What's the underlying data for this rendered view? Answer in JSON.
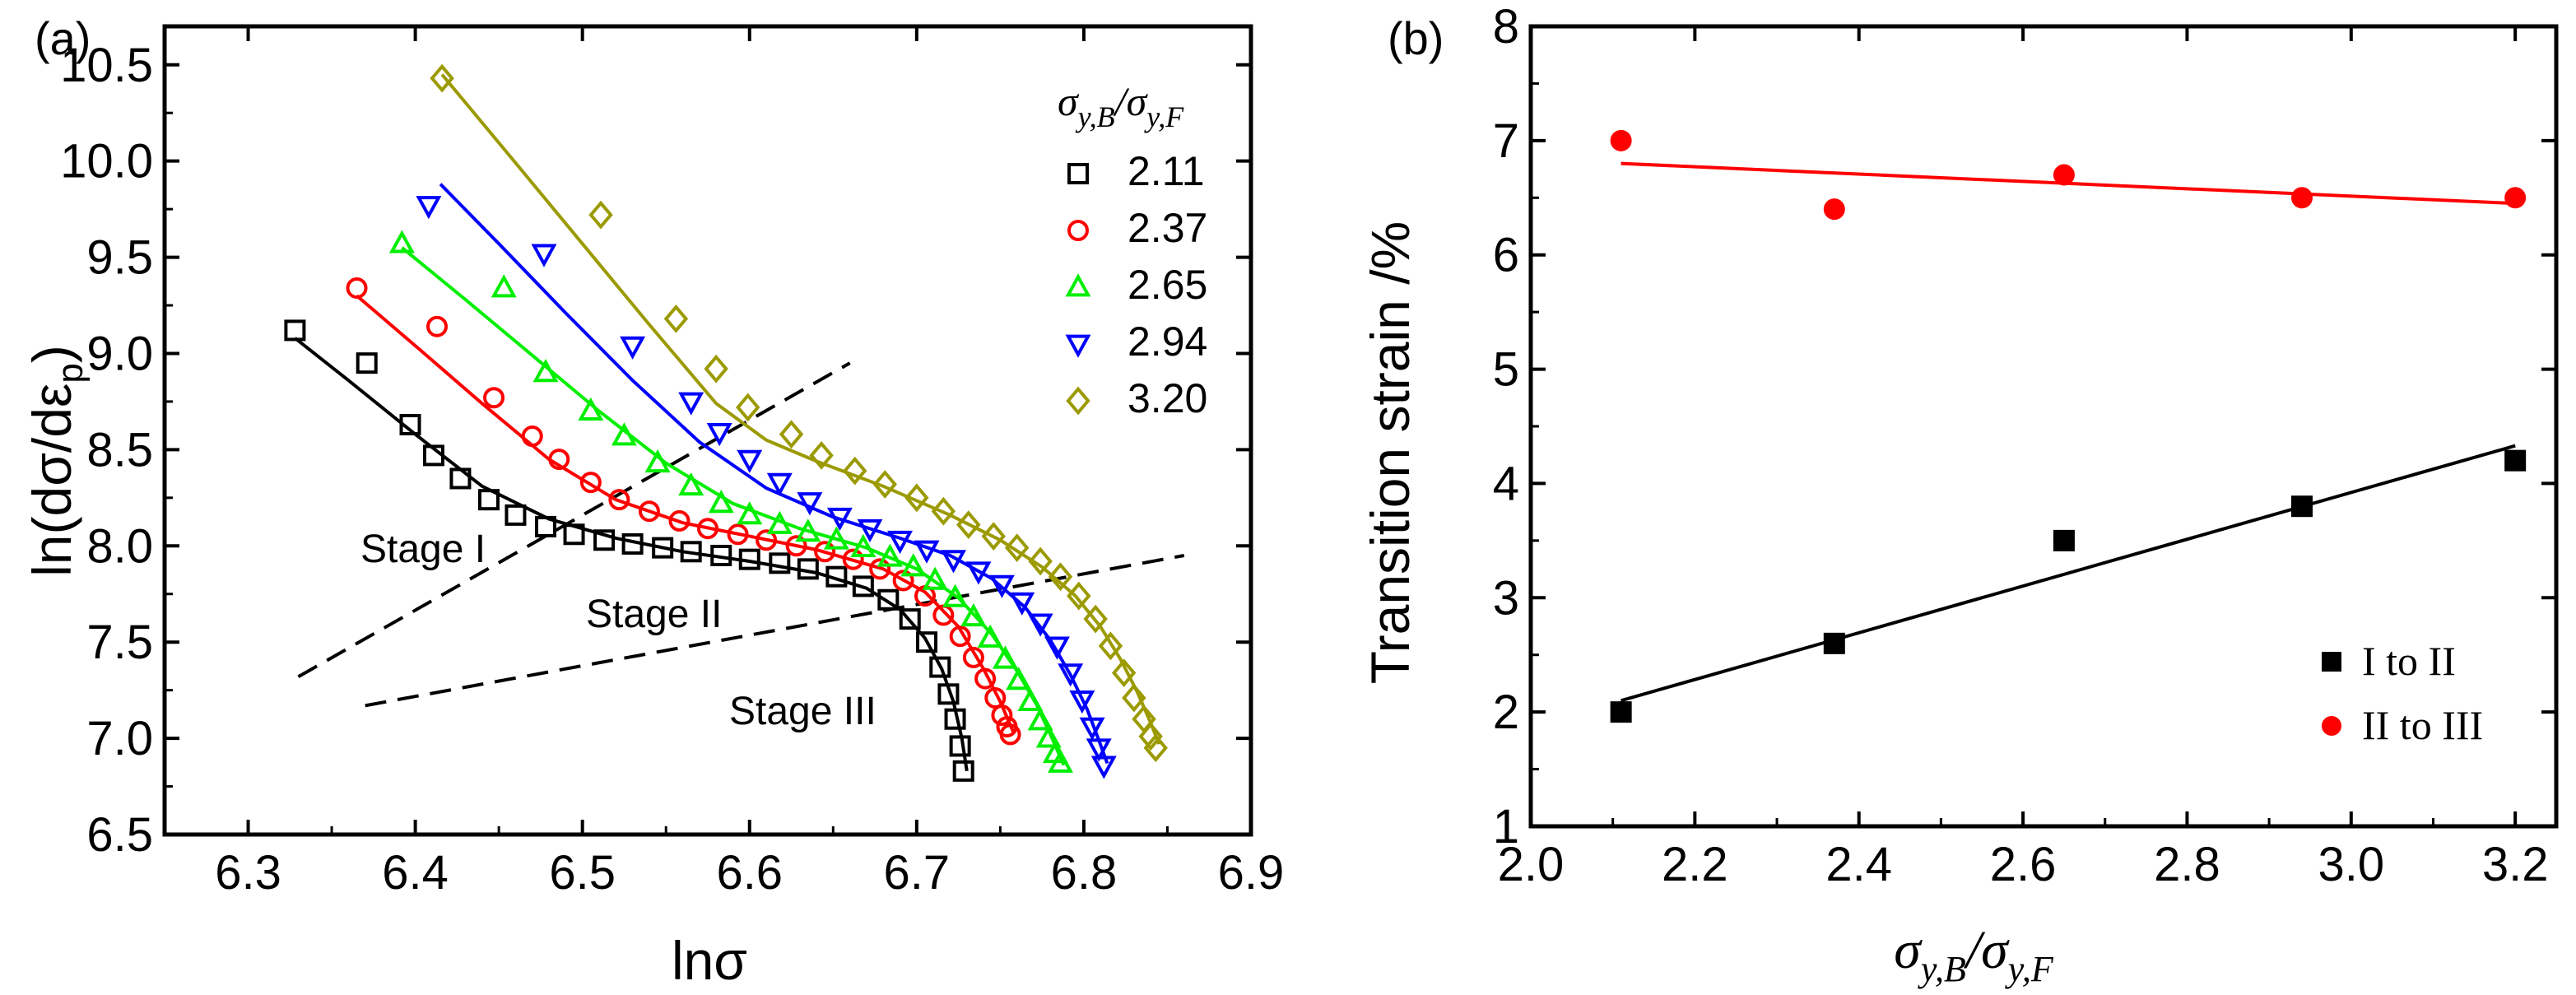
{
  "chart_data": [
    {
      "panel_label": "(a)",
      "type": "scatter",
      "xlabel": "lnσ",
      "ylabel": "ln(dσ/dε",
      "ylabel_sub": "p",
      "ylabel_close": ")",
      "xlim": [
        6.25,
        6.9
      ],
      "ylim": [
        6.5,
        10.7
      ],
      "xticks": [
        6.3,
        6.4,
        6.5,
        6.6,
        6.7,
        6.8,
        6.9
      ],
      "xtick_labels": [
        "6.3",
        "6.4",
        "6.5",
        "6.6",
        "6.7",
        "6.8",
        "6.9"
      ],
      "yticks": [
        6.5,
        7.0,
        7.5,
        8.0,
        8.5,
        9.0,
        9.5,
        10.0,
        10.5
      ],
      "ytick_labels": [
        "6.5",
        "7.0",
        "7.5",
        "8.0",
        "8.5",
        "9.0",
        "9.5",
        "10.0",
        "10.5"
      ],
      "legend_title": {
        "main": "σ",
        "sub1": "y,B",
        "slash": "/",
        "sub2": "y,F"
      },
      "annotations": [
        "Stage I",
        "Stage II",
        "Stage III"
      ],
      "series": [
        {
          "name": "2.11",
          "color": "#000000",
          "marker": "square",
          "x": [
            6.328,
            6.371,
            6.397,
            6.411,
            6.427,
            6.444,
            6.46,
            6.478,
            6.495,
            6.513,
            6.53,
            6.548,
            6.565,
            6.583,
            6.6,
            6.618,
            6.635,
            6.652,
            6.668,
            6.683,
            6.696,
            6.706,
            6.714,
            6.719,
            6.723,
            6.726,
            6.728
          ],
          "y": [
            9.12,
            8.95,
            8.63,
            8.47,
            8.35,
            8.24,
            8.16,
            8.1,
            8.06,
            8.03,
            8.01,
            7.99,
            7.97,
            7.95,
            7.93,
            7.91,
            7.88,
            7.84,
            7.79,
            7.72,
            7.62,
            7.5,
            7.37,
            7.23,
            7.1,
            6.96,
            6.83
          ],
          "fit_x": [
            6.328,
            6.36,
            6.4,
            6.44,
            6.48,
            6.52,
            6.56,
            6.6,
            6.64,
            6.67,
            6.69,
            6.705,
            6.715,
            6.722,
            6.727,
            6.73
          ],
          "fit_y": [
            9.08,
            8.86,
            8.58,
            8.31,
            8.14,
            8.04,
            7.97,
            7.92,
            7.86,
            7.78,
            7.67,
            7.52,
            7.36,
            7.19,
            7.0,
            6.83
          ]
        },
        {
          "name": "2.37",
          "color": "#ff0000",
          "marker": "circle",
          "x": [
            6.365,
            6.413,
            6.447,
            6.47,
            6.486,
            6.505,
            6.522,
            6.54,
            6.558,
            6.575,
            6.593,
            6.61,
            6.628,
            6.645,
            6.662,
            6.678,
            6.692,
            6.705,
            6.716,
            6.726,
            6.734,
            6.741,
            6.747,
            6.751,
            6.754,
            6.756
          ],
          "y": [
            9.34,
            9.14,
            8.77,
            8.57,
            8.45,
            8.33,
            8.24,
            8.18,
            8.13,
            8.09,
            8.06,
            8.03,
            8.0,
            7.97,
            7.93,
            7.88,
            7.82,
            7.74,
            7.64,
            7.53,
            7.42,
            7.31,
            7.21,
            7.12,
            7.06,
            7.02
          ],
          "fit_x": [
            6.365,
            6.4,
            6.44,
            6.48,
            6.52,
            6.56,
            6.6,
            6.64,
            6.68,
            6.705,
            6.725,
            6.74,
            6.75,
            6.755,
            6.758
          ],
          "fit_y": [
            9.3,
            9.04,
            8.74,
            8.45,
            8.24,
            8.12,
            8.05,
            7.98,
            7.88,
            7.76,
            7.58,
            7.36,
            7.19,
            7.09,
            7.03
          ]
        },
        {
          "name": "2.65",
          "color": "#00ee00",
          "marker": "triangle-up",
          "x": [
            6.392,
            6.453,
            6.478,
            6.505,
            6.525,
            6.545,
            6.565,
            6.583,
            6.6,
            6.618,
            6.635,
            6.652,
            6.668,
            6.684,
            6.698,
            6.711,
            6.723,
            6.734,
            6.744,
            6.753,
            6.761,
            6.768,
            6.774,
            6.779,
            6.783,
            6.786
          ],
          "y": [
            9.57,
            9.34,
            8.9,
            8.7,
            8.57,
            8.43,
            8.31,
            8.22,
            8.16,
            8.11,
            8.07,
            8.03,
            7.99,
            7.94,
            7.89,
            7.82,
            7.73,
            7.63,
            7.52,
            7.41,
            7.3,
            7.19,
            7.09,
            7.0,
            6.92,
            6.87
          ],
          "fit_x": [
            6.392,
            6.43,
            6.47,
            6.51,
            6.55,
            6.59,
            6.63,
            6.67,
            6.7,
            6.725,
            6.745,
            6.76,
            6.772,
            6.78,
            6.785,
            6.788
          ],
          "fit_y": [
            9.55,
            9.28,
            8.99,
            8.7,
            8.43,
            8.22,
            8.09,
            7.99,
            7.88,
            7.73,
            7.54,
            7.35,
            7.17,
            7.02,
            6.92,
            6.86
          ]
        },
        {
          "name": "2.94",
          "color": "#0000ff",
          "marker": "triangle-down",
          "x": [
            6.408,
            6.477,
            6.53,
            6.565,
            6.582,
            6.6,
            6.618,
            6.636,
            6.654,
            6.672,
            6.69,
            6.706,
            6.722,
            6.737,
            6.751,
            6.763,
            6.774,
            6.784,
            6.792,
            6.799,
            6.805,
            6.809,
            6.812
          ],
          "y": [
            9.77,
            9.52,
            9.04,
            8.75,
            8.59,
            8.45,
            8.33,
            8.23,
            8.15,
            8.09,
            8.03,
            7.98,
            7.93,
            7.87,
            7.8,
            7.71,
            7.6,
            7.48,
            7.34,
            7.2,
            7.06,
            6.95,
            6.86
          ],
          "fit_x": [
            6.415,
            6.45,
            6.49,
            6.53,
            6.57,
            6.61,
            6.65,
            6.69,
            6.72,
            6.745,
            6.765,
            6.78,
            6.792,
            6.802,
            6.809,
            6.814
          ],
          "fit_y": [
            9.88,
            9.57,
            9.21,
            8.86,
            8.54,
            8.3,
            8.15,
            8.04,
            7.95,
            7.83,
            7.68,
            7.51,
            7.33,
            7.15,
            6.99,
            6.87
          ]
        },
        {
          "name": "3.20",
          "color": "#9b9a00",
          "marker": "diamond",
          "x": [
            6.416,
            6.511,
            6.556,
            6.58,
            6.599,
            6.625,
            6.643,
            6.663,
            6.681,
            6.7,
            6.716,
            6.731,
            6.746,
            6.76,
            6.774,
            6.786,
            6.797,
            6.807,
            6.816,
            6.824,
            6.83,
            6.836,
            6.84,
            6.843
          ],
          "y": [
            10.43,
            9.72,
            9.18,
            8.92,
            8.72,
            8.58,
            8.47,
            8.39,
            8.32,
            8.25,
            8.18,
            8.11,
            8.05,
            7.99,
            7.92,
            7.84,
            7.74,
            7.62,
            7.48,
            7.34,
            7.21,
            7.1,
            7.01,
            6.95
          ],
          "fit_x": [
            6.416,
            6.46,
            6.5,
            6.54,
            6.58,
            6.61,
            6.64,
            6.68,
            6.72,
            6.75,
            6.775,
            6.795,
            6.81,
            6.822,
            6.832,
            6.84,
            6.845
          ],
          "fit_y": [
            10.45,
            9.99,
            9.57,
            9.15,
            8.74,
            8.55,
            8.44,
            8.31,
            8.16,
            8.03,
            7.89,
            7.74,
            7.58,
            7.41,
            7.24,
            7.08,
            6.97
          ]
        }
      ],
      "boundary_lines": [
        {
          "x": [
            6.33,
            6.66
          ],
          "y": [
            7.32,
            8.95
          ]
        },
        {
          "x": [
            6.37,
            6.86
          ],
          "y": [
            7.17,
            7.95
          ]
        }
      ]
    },
    {
      "panel_label": "(b)",
      "type": "scatter",
      "ylabel": "Transition strain /%",
      "xlabel": {
        "main": "σ",
        "sub1": "y,B",
        "slash": "/",
        "sub2": "y,F"
      },
      "xlim": [
        2.0,
        3.25
      ],
      "ylim": [
        1,
        8
      ],
      "xticks": [
        2.0,
        2.2,
        2.4,
        2.6,
        2.8,
        3.0,
        3.2
      ],
      "xtick_labels": [
        "2.0",
        "2.2",
        "2.4",
        "2.6",
        "2.8",
        "3.0",
        "3.2"
      ],
      "yticks": [
        1,
        2,
        3,
        4,
        5,
        6,
        7,
        8
      ],
      "ytick_labels": [
        "1",
        "2",
        "3",
        "4",
        "5",
        "6",
        "7",
        "8"
      ],
      "series": [
        {
          "name": "I to II",
          "color": "#000000",
          "marker": "square",
          "x": [
            2.11,
            2.37,
            2.65,
            2.94,
            3.2
          ],
          "y": [
            2.0,
            2.6,
            3.5,
            3.8,
            4.2
          ],
          "fit_x": [
            2.11,
            3.2
          ],
          "fit_y": [
            2.1,
            4.33
          ]
        },
        {
          "name": "II to III",
          "color": "#ff0000",
          "marker": "circle",
          "x": [
            2.11,
            2.37,
            2.65,
            2.94,
            3.2
          ],
          "y": [
            7.0,
            6.4,
            6.7,
            6.5,
            6.5
          ],
          "fit_x": [
            2.11,
            3.2
          ],
          "fit_y": [
            6.8,
            6.45
          ]
        }
      ]
    }
  ]
}
